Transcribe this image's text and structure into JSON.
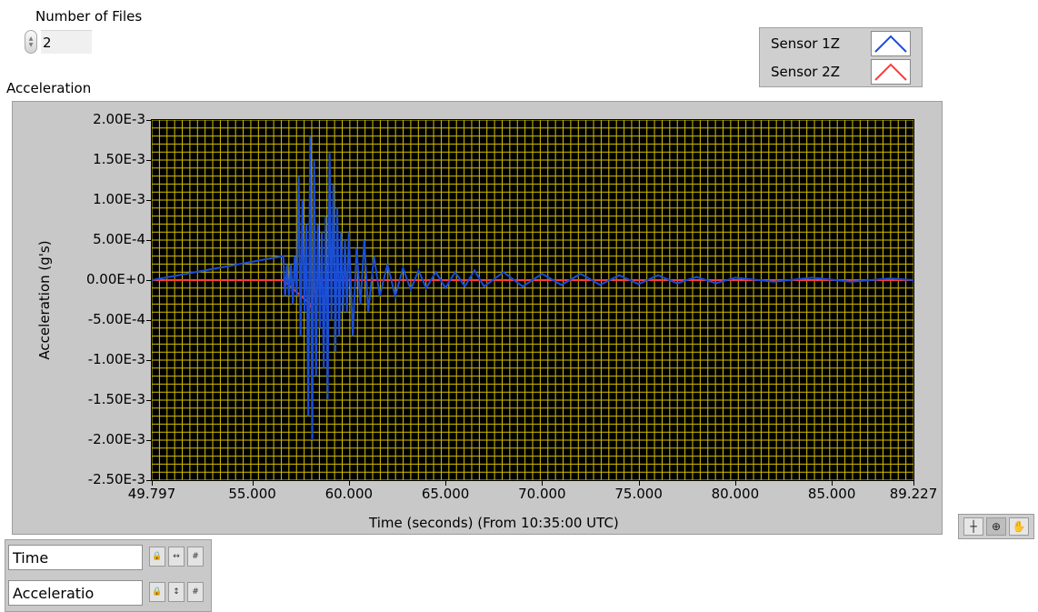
{
  "controls": {
    "num_files_label": "Number of Files",
    "num_files_value": "2"
  },
  "graph": {
    "label": "Acceleration"
  },
  "legend": {
    "items": [
      {
        "name": "Sensor 1Z",
        "color": "#1a4fd8"
      },
      {
        "name": "Sensor 2Z",
        "color": "#ff3b3b"
      }
    ]
  },
  "scale_palette": {
    "x_name": "Time",
    "y_name": "Acceleratio"
  },
  "tools": [
    "cursor-tool",
    "zoom-tool",
    "pan-tool"
  ],
  "colors": {
    "plot_bg": "#000000",
    "grid": "#d4c200",
    "sensor1": "#1a4fd8",
    "sensor2": "#ff3b3b"
  },
  "chart_data": {
    "type": "line",
    "title": "",
    "xlabel": "Time (seconds) (From 10:35:00 UTC)",
    "ylabel": "Acceleration (g's)",
    "xlim": [
      49.797,
      89.227
    ],
    "ylim": [
      -0.0025,
      0.002
    ],
    "x_ticks": [
      "49.797",
      "55.000",
      "60.000",
      "65.000",
      "70.000",
      "75.000",
      "80.000",
      "85.000",
      "89.227"
    ],
    "x_tick_values": [
      49.797,
      55,
      60,
      65,
      70,
      75,
      80,
      85,
      89.227
    ],
    "y_ticks": [
      "2.00E-3",
      "1.50E-3",
      "1.00E-3",
      "5.00E-4",
      "0.00E+0",
      "-5.00E-4",
      "-1.00E-3",
      "-1.50E-3",
      "-2.00E-3",
      "-2.50E-3"
    ],
    "y_tick_values": [
      0.002,
      0.0015,
      0.001,
      0.0005,
      0,
      -0.0005,
      -0.001,
      -0.0015,
      -0.002,
      -0.0025
    ],
    "grid": true,
    "series": [
      {
        "name": "Sensor 1Z",
        "x": [
          49.797,
          56.6,
          56.7,
          56.8,
          56.9,
          57.0,
          57.1,
          57.2,
          57.3,
          57.4,
          57.5,
          57.6,
          57.7,
          57.8,
          57.9,
          58.0,
          58.1,
          58.2,
          58.3,
          58.4,
          58.5,
          58.6,
          58.7,
          58.8,
          58.9,
          59.0,
          59.1,
          59.2,
          59.3,
          59.4,
          59.5,
          59.6,
          59.7,
          59.8,
          59.9,
          60.0,
          60.2,
          60.4,
          60.6,
          60.8,
          61.0,
          61.3,
          61.6,
          62.0,
          62.4,
          62.8,
          63.2,
          63.6,
          64.0,
          64.5,
          65.0,
          65.5,
          66.0,
          66.5,
          67.0,
          68.0,
          69.0,
          70.0,
          71.0,
          72.0,
          73.0,
          74.0,
          75.0,
          76.0,
          77.0,
          78.0,
          79.0,
          80.0,
          82.0,
          84.0,
          86.0,
          88.0,
          89.227
        ],
        "y": [
          0,
          0.0003,
          -0.0002,
          0.0002,
          -0.0002,
          0.0002,
          -0.0003,
          0.0003,
          -0.0002,
          0.0013,
          -0.0007,
          0.001,
          -0.0004,
          0.0007,
          -0.0017,
          0.0018,
          -0.002,
          0.0015,
          -0.0012,
          0.0007,
          -0.0006,
          0.0006,
          -0.0011,
          0.0008,
          -0.0015,
          0.0016,
          -0.0005,
          0.0012,
          -0.0009,
          0.0009,
          -0.0007,
          0.0006,
          -0.0004,
          0.0005,
          -0.0004,
          0.0006,
          -0.0007,
          0.0004,
          -0.0003,
          0.0005,
          -0.0004,
          0.0003,
          -0.0002,
          0.0002,
          -0.0002,
          0.00015,
          -0.00012,
          0.00012,
          -0.0001,
          0.0001,
          -0.0001,
          0.0001,
          -8e-05,
          0.00012,
          -8e-05,
          0.0001,
          -8e-05,
          8e-05,
          -6e-05,
          8e-05,
          -6e-05,
          6e-05,
          -5e-05,
          6e-05,
          -4e-05,
          4e-05,
          -4e-05,
          3e-05,
          -2e-05,
          3e-05,
          -2e-05,
          2e-05,
          0
        ]
      },
      {
        "name": "Sensor 2Z",
        "x": [
          49.797,
          56.6,
          58.0,
          58.1,
          58.2,
          89.227
        ],
        "y": [
          0,
          0,
          -0.0003,
          -0.0004,
          0,
          0
        ]
      }
    ]
  }
}
